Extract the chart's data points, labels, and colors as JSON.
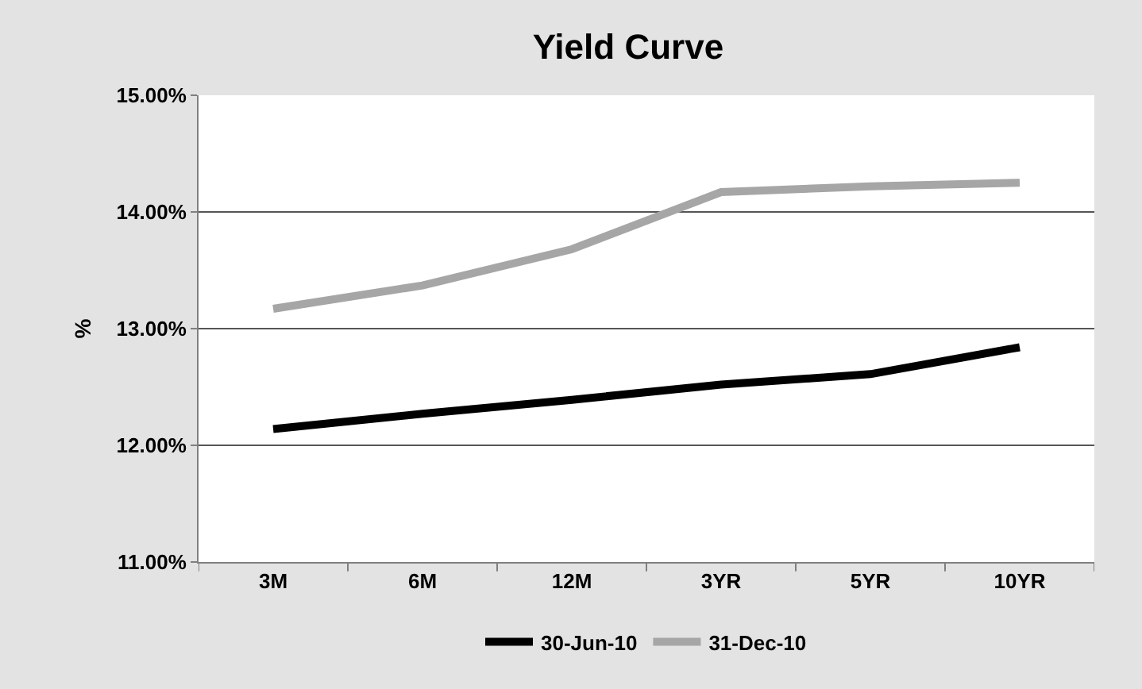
{
  "chart_data": {
    "type": "line",
    "title": "Yield Curve",
    "ylabel": "%",
    "categories": [
      "3M",
      "6M",
      "12M",
      "3YR",
      "5YR",
      "10YR"
    ],
    "series": [
      {
        "name": "30-Jun-10",
        "color": "#000000",
        "values": [
          12.14,
          12.27,
          12.39,
          12.52,
          12.61,
          12.84
        ]
      },
      {
        "name": "31-Dec-10",
        "color": "#a6a6a6",
        "values": [
          13.17,
          13.37,
          13.68,
          14.17,
          14.22,
          14.25
        ]
      }
    ],
    "ylim": [
      11,
      15
    ],
    "yticks": [
      {
        "value": 11,
        "label": "11.00%"
      },
      {
        "value": 12,
        "label": "12.00%"
      },
      {
        "value": 13,
        "label": "13.00%"
      },
      {
        "value": 14,
        "label": "14.00%"
      },
      {
        "value": 15,
        "label": "15.00%"
      }
    ],
    "grid": "y",
    "legend": "bottom",
    "marker": "none",
    "line_style": "solid"
  }
}
